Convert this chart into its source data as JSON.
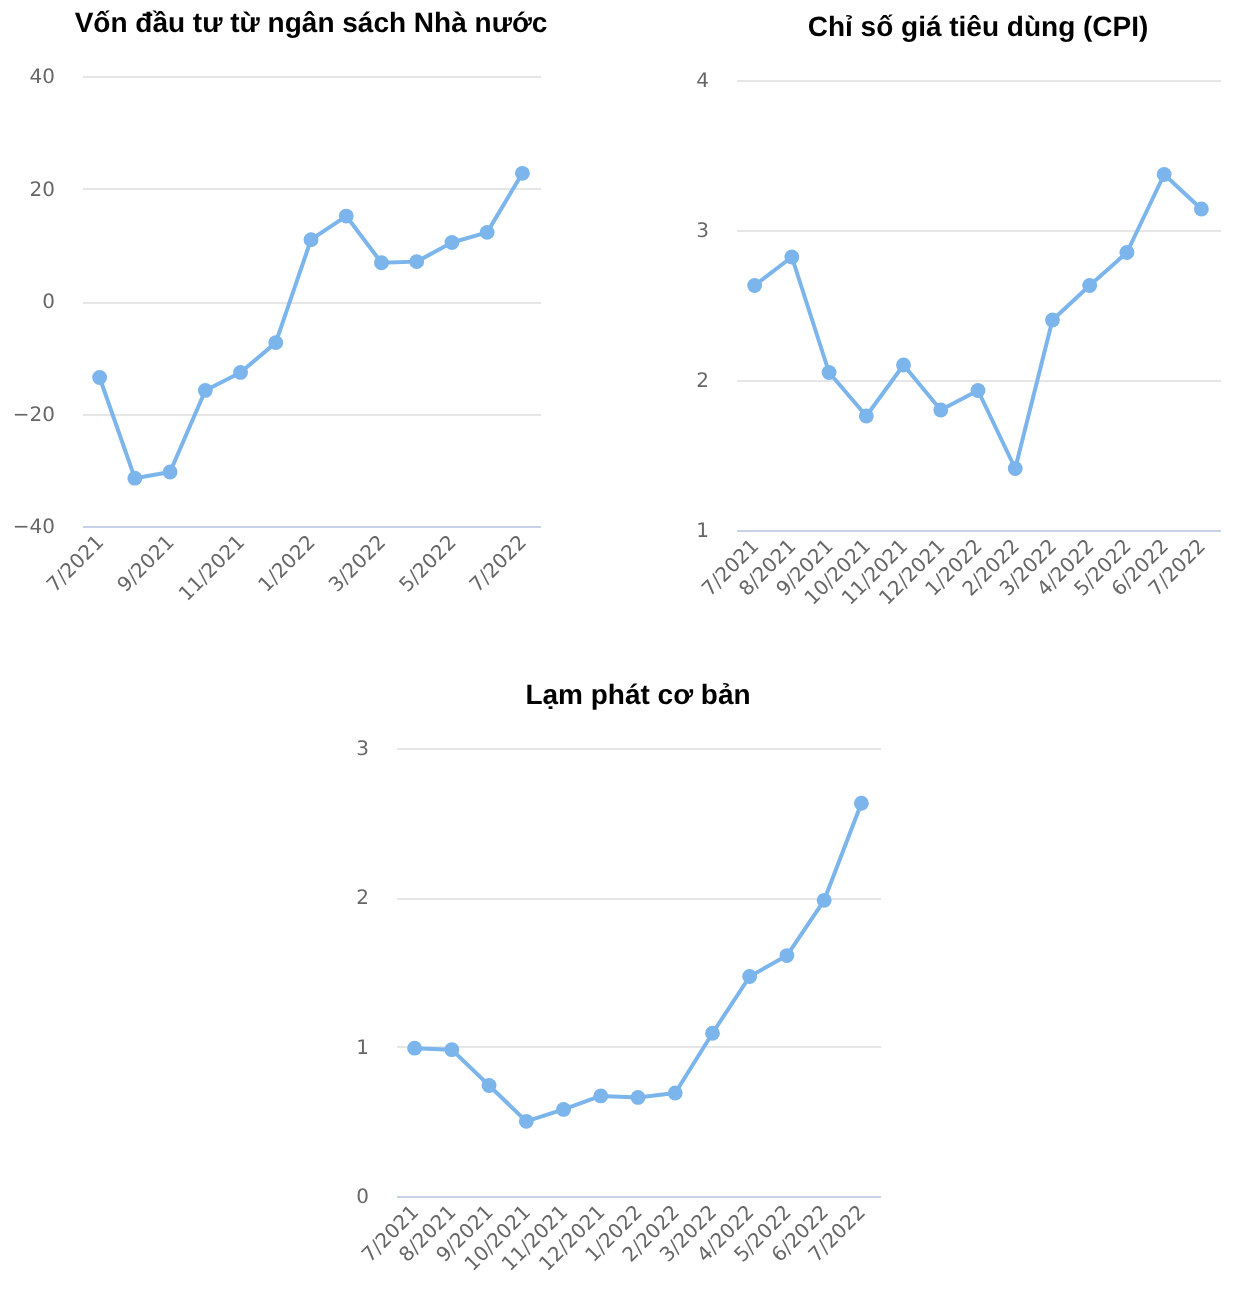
{
  "chart_data": [
    {
      "type": "line",
      "title": "Vốn đầu tư từ ngân sách Nhà nước",
      "categories": [
        "7/2021",
        null,
        "9/2021",
        null,
        "11/2021",
        null,
        "1/2022",
        null,
        "3/2022",
        null,
        "5/2022",
        null,
        "7/2022"
      ],
      "values": [
        -13.6,
        -31.5,
        -30.4,
        -15.9,
        -12.7,
        -7.4,
        10.9,
        15.1,
        6.8,
        7.0,
        10.4,
        12.2,
        22.7
      ],
      "color": "#7cb5ec",
      "ylim": [
        -40,
        40
      ],
      "yticks": [
        -40,
        -20,
        0,
        20,
        40
      ],
      "grid": "y",
      "marker": "circle"
    },
    {
      "type": "line",
      "title": "Chỉ số giá tiêu dùng (CPI)",
      "categories": [
        "7/2021",
        "8/2021",
        "9/2021",
        "10/2021",
        "11/2021",
        "12/2021",
        "1/2022",
        "2/2022",
        "3/2022",
        "4/2022",
        "5/2022",
        "6/2022",
        "7/2022"
      ],
      "values": [
        2.63,
        2.82,
        2.05,
        1.76,
        2.1,
        1.8,
        1.93,
        1.41,
        2.4,
        2.63,
        2.85,
        3.37,
        3.14
      ],
      "color": "#7cb5ec",
      "ylim": [
        1,
        4
      ],
      "yticks": [
        1,
        2,
        3,
        4
      ],
      "grid": "y",
      "marker": "circle"
    },
    {
      "type": "line",
      "title": "Lạm phát cơ bản",
      "categories": [
        "7/2021",
        "8/2021",
        "9/2021",
        "10/2021",
        "11/2021",
        "12/2021",
        "1/2022",
        "2/2022",
        "3/2022",
        "4/2022",
        "5/2022",
        "6/2022",
        "7/2022"
      ],
      "values": [
        0.99,
        0.98,
        0.74,
        0.5,
        0.58,
        0.67,
        0.66,
        0.69,
        1.09,
        1.47,
        1.61,
        1.98,
        2.63
      ],
      "color": "#7cb5ec",
      "ylim": [
        0,
        3
      ],
      "yticks": [
        0,
        1,
        2,
        3
      ],
      "grid": "y",
      "marker": "circle"
    }
  ]
}
